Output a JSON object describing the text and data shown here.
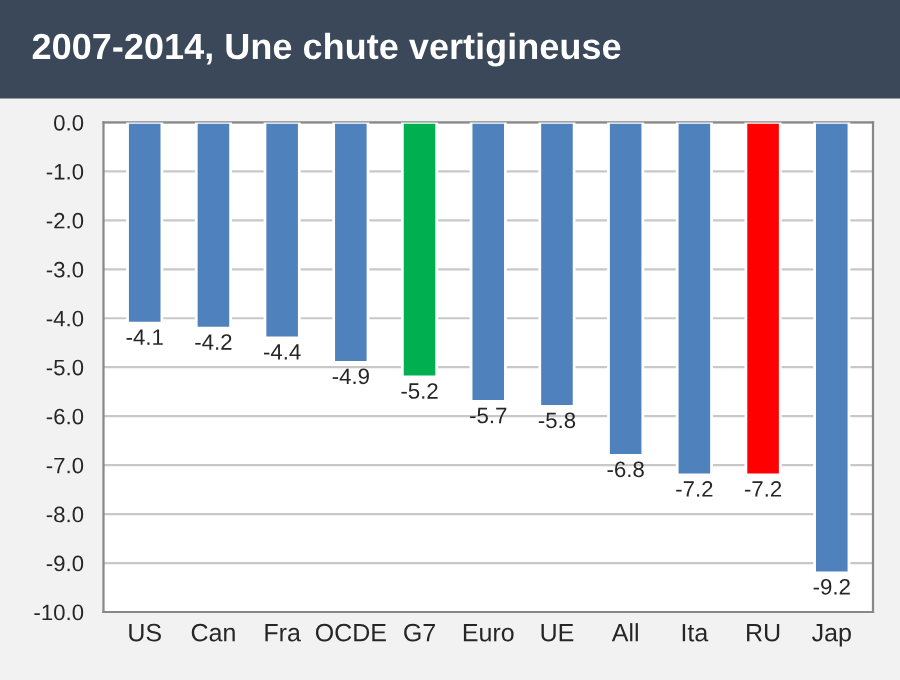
{
  "chart_data": {
    "type": "bar",
    "title": "2007-2014, Une chute vertigineuse",
    "categories": [
      "US",
      "Can",
      "Fra",
      "OCDE",
      "G7",
      "Euro",
      "UE",
      "All",
      "Ita",
      "RU",
      "Jap"
    ],
    "values": [
      -4.1,
      -4.2,
      -4.4,
      -4.9,
      -5.2,
      -5.7,
      -5.8,
      -6.8,
      -7.2,
      -7.2,
      -9.2
    ],
    "colors": [
      "#4f81bd",
      "#4f81bd",
      "#4f81bd",
      "#4f81bd",
      "#00b050",
      "#4f81bd",
      "#4f81bd",
      "#4f81bd",
      "#4f81bd",
      "#ff0000",
      "#4f81bd"
    ],
    "ylim": [
      -10,
      0
    ],
    "yticks": [
      {
        "value": 0,
        "label": "0.0"
      },
      {
        "value": -1,
        "label": "-1.0"
      },
      {
        "value": -2,
        "label": "-2.0"
      },
      {
        "value": -3,
        "label": "-3.0"
      },
      {
        "value": -4,
        "label": "-4.0"
      },
      {
        "value": -5,
        "label": "-5.0"
      },
      {
        "value": -6,
        "label": "-6.0"
      },
      {
        "value": -7,
        "label": "-7.0"
      },
      {
        "value": -8,
        "label": "-8.0"
      },
      {
        "value": -9,
        "label": "-9.0"
      },
      {
        "value": -10,
        "label": "-10.0"
      }
    ],
    "grid": "y",
    "data_labels": true
  }
}
